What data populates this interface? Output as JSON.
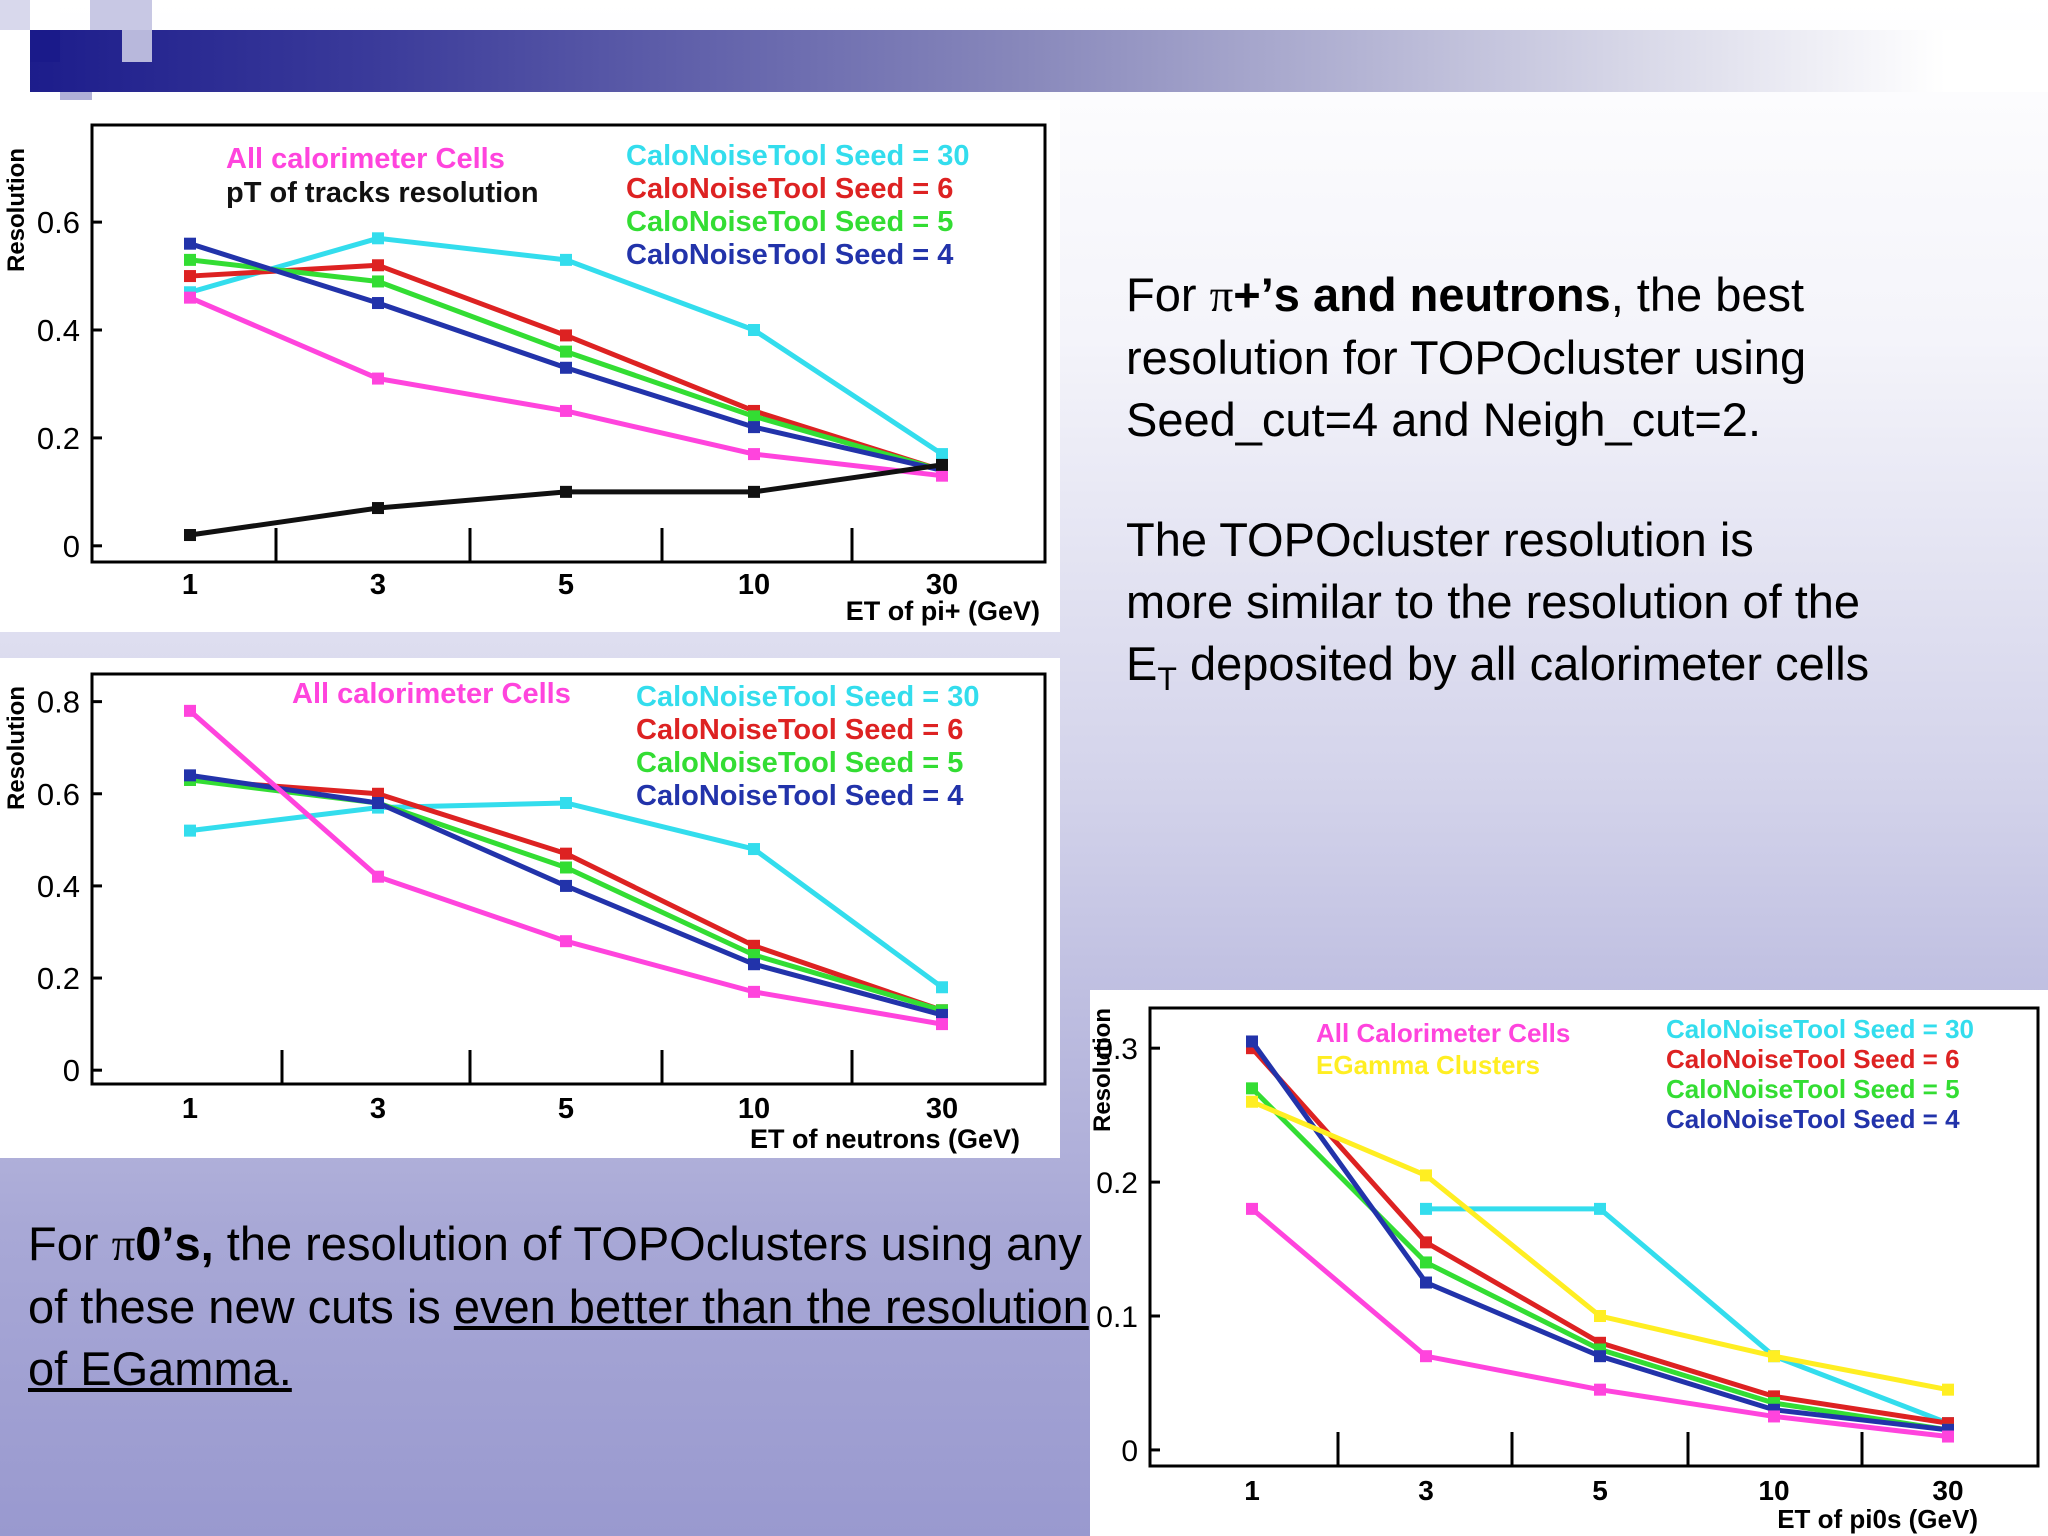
{
  "slide": {
    "text1": {
      "prefix": "For ",
      "pi": "π",
      "bold": "+’s and neutrons",
      "rest": ", the best resolution for TOPOcluster using Seed_cut=4 and Neigh_cut=2."
    },
    "text2": {
      "line1": "The TOPOcluster resolution is",
      "line2": "more similar to the resolution of the",
      "line3_pre": "E",
      "line3_sub": "T",
      "line3_post": " deposited by all calorimeter cells"
    },
    "text3": {
      "prefix": "For ",
      "pi": "π",
      "bold": "0’s,",
      "mid": " the resolution of TOPOclusters using any of these new cuts is ",
      "underlined": "even better than the resolution of EGamma."
    }
  },
  "colors": {
    "cyan": "#33dded",
    "red": "#dd2222",
    "green": "#33dd33",
    "blue": "#2233aa",
    "magenta": "#ff44dd",
    "black": "#111111",
    "yellow": "#ffee22"
  },
  "chart_data": [
    {
      "type": "line",
      "ylabel": "Resolution",
      "xlabel": "ET of pi+ (GeV)",
      "categories": [
        "1",
        "3",
        "5",
        "10",
        "30"
      ],
      "y_ticks": [
        "0",
        "0.2",
        "0.4",
        "0.6"
      ],
      "ylim": [
        -0.03,
        0.78
      ],
      "legend_left": [
        "All calorimeter Cells",
        "pT of tracks resolution"
      ],
      "legend_right": [
        "CaloNoiseTool Seed = 30",
        "CaloNoiseTool Seed = 6",
        "CaloNoiseTool Seed = 5",
        "CaloNoiseTool Seed = 4"
      ],
      "series": [
        {
          "name": "CaloNoiseTool Seed = 30",
          "color": "cyan",
          "values": [
            0.47,
            0.57,
            0.53,
            0.4,
            0.17
          ]
        },
        {
          "name": "CaloNoiseTool Seed = 6",
          "color": "red",
          "values": [
            0.5,
            0.52,
            0.39,
            0.25,
            0.14
          ]
        },
        {
          "name": "CaloNoiseTool Seed = 5",
          "color": "green",
          "values": [
            0.53,
            0.49,
            0.36,
            0.24,
            0.14
          ]
        },
        {
          "name": "CaloNoiseTool Seed = 4",
          "color": "blue",
          "values": [
            0.56,
            0.45,
            0.33,
            0.22,
            0.14
          ]
        },
        {
          "name": "All calorimeter Cells",
          "color": "magenta",
          "values": [
            0.46,
            0.31,
            0.25,
            0.17,
            0.13
          ]
        },
        {
          "name": "pT of tracks resolution",
          "color": "black",
          "values": [
            0.02,
            0.07,
            0.1,
            0.1,
            0.15
          ]
        }
      ]
    },
    {
      "type": "line",
      "ylabel": "Resolution",
      "xlabel": "ET of neutrons (GeV)",
      "categories": [
        "1",
        "3",
        "5",
        "10",
        "30"
      ],
      "y_ticks": [
        "0",
        "0.2",
        "0.4",
        "0.6",
        "0.8"
      ],
      "ylim": [
        -0.03,
        0.86
      ],
      "legend_left": [
        "All calorimeter Cells"
      ],
      "legend_right": [
        "CaloNoiseTool Seed = 30",
        "CaloNoiseTool Seed = 6",
        "CaloNoiseTool Seed = 5",
        "CaloNoiseTool Seed = 4"
      ],
      "series": [
        {
          "name": "CaloNoiseTool Seed = 30",
          "color": "cyan",
          "values": [
            0.52,
            0.57,
            0.58,
            0.48,
            0.18
          ]
        },
        {
          "name": "CaloNoiseTool Seed = 6",
          "color": "red",
          "values": [
            0.63,
            0.6,
            0.47,
            0.27,
            0.13
          ]
        },
        {
          "name": "CaloNoiseTool Seed = 5",
          "color": "green",
          "values": [
            0.63,
            0.58,
            0.44,
            0.25,
            0.13
          ]
        },
        {
          "name": "CaloNoiseTool Seed = 4",
          "color": "blue",
          "values": [
            0.64,
            0.58,
            0.4,
            0.23,
            0.12
          ]
        },
        {
          "name": "All calorimeter Cells",
          "color": "magenta",
          "values": [
            0.78,
            0.42,
            0.28,
            0.17,
            0.1
          ]
        }
      ]
    },
    {
      "type": "line",
      "ylabel": "Resolution",
      "xlabel": "ET of pi0s (GeV)",
      "categories": [
        "1",
        "3",
        "5",
        "10",
        "30"
      ],
      "y_ticks": [
        "0",
        "0.1",
        "0.2",
        "0.3"
      ],
      "ylim": [
        -0.012,
        0.33
      ],
      "legend_left": [
        "All Calorimeter Cells",
        "EGamma Clusters"
      ],
      "legend_right": [
        "CaloNoiseTool Seed = 30",
        "CaloNoiseTool Seed = 6",
        "CaloNoiseTool Seed = 5",
        "CaloNoiseTool Seed = 4"
      ],
      "series": [
        {
          "name": "CaloNoiseTool Seed = 30",
          "color": "cyan",
          "values": [
            null,
            0.18,
            0.18,
            0.07,
            0.02
          ]
        },
        {
          "name": "CaloNoiseTool Seed = 6",
          "color": "red",
          "values": [
            0.3,
            0.155,
            0.08,
            0.04,
            0.02
          ]
        },
        {
          "name": "CaloNoiseTool Seed = 5",
          "color": "green",
          "values": [
            0.27,
            0.14,
            0.075,
            0.035,
            0.015
          ]
        },
        {
          "name": "CaloNoiseTool Seed = 4",
          "color": "blue",
          "values": [
            0.305,
            0.125,
            0.07,
            0.03,
            0.015
          ]
        },
        {
          "name": "All Calorimeter Cells",
          "color": "magenta",
          "values": [
            0.18,
            0.07,
            0.045,
            0.025,
            0.01
          ]
        },
        {
          "name": "EGamma Clusters",
          "color": "yellow",
          "values": [
            0.26,
            0.205,
            0.1,
            0.07,
            0.045
          ]
        }
      ]
    }
  ]
}
